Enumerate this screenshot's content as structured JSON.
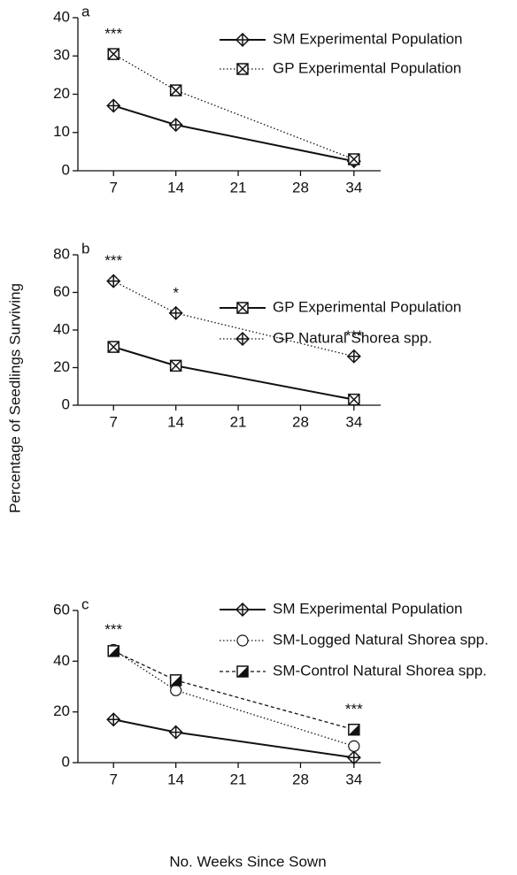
{
  "ylabel": "Percentage of Seedlings Surviving",
  "xlabel": "No. Weeks Since Sown",
  "chart_data": [
    {
      "type": "line",
      "panel": "a",
      "x": [
        7,
        14,
        34
      ],
      "xlim": [
        3,
        37
      ],
      "xticks": [
        7,
        14,
        21,
        28,
        34
      ],
      "ylim": [
        0,
        40
      ],
      "yticks": [
        0,
        10,
        20,
        30,
        40
      ],
      "series": [
        {
          "name": "SM Experimental Population",
          "color": "#111111",
          "line_style": "solid",
          "marker": "diamond",
          "values": [
            17,
            12,
            2.5
          ]
        },
        {
          "name": "GP Experimental Population",
          "color": "#111111",
          "line_style": "dotted",
          "marker": "boxx",
          "values": [
            30.5,
            21,
            3
          ]
        }
      ],
      "annotations": [
        {
          "text": "***",
          "x": 7
        }
      ]
    },
    {
      "type": "line",
      "panel": "b",
      "x": [
        7,
        14,
        34
      ],
      "xlim": [
        3,
        37
      ],
      "xticks": [
        7,
        14,
        21,
        28,
        34
      ],
      "ylim": [
        0,
        80
      ],
      "yticks": [
        0,
        20,
        40,
        60,
        80
      ],
      "series": [
        {
          "name": "GP Experimental Population",
          "color": "#111111",
          "line_style": "solid",
          "marker": "boxx",
          "values": [
            31,
            21,
            3
          ]
        },
        {
          "name": "GP Natural Shorea spp.",
          "color": "#111111",
          "line_style": "dotted",
          "marker": "diamond",
          "values": [
            66,
            49,
            26
          ]
        }
      ],
      "annotations": [
        {
          "text": "***",
          "x": 7
        },
        {
          "text": "*",
          "x": 14
        },
        {
          "text": "***",
          "x": 34
        }
      ]
    },
    {
      "type": "line",
      "panel": "c",
      "x": [
        7,
        14,
        34
      ],
      "xlim": [
        3,
        37
      ],
      "xticks": [
        7,
        14,
        21,
        28,
        34
      ],
      "ylim": [
        0,
        60
      ],
      "yticks": [
        0,
        20,
        40,
        60
      ],
      "series": [
        {
          "name": "SM Experimental Population",
          "color": "#111111",
          "line_style": "solid",
          "marker": "diamond",
          "values": [
            17,
            12,
            2
          ]
        },
        {
          "name": "SM-Logged Natural Shorea spp.",
          "color": "#111111",
          "line_style": "dotted",
          "marker": "circle",
          "values": [
            44.5,
            28.5,
            6.5
          ]
        },
        {
          "name": "SM-Control Natural Shorea spp.",
          "color": "#111111",
          "line_style": "dashed",
          "marker": "halfsquare",
          "values": [
            44,
            32.5,
            13
          ]
        }
      ],
      "annotations": [
        {
          "text": "***",
          "x": 7
        },
        {
          "text": "***",
          "x": 34
        }
      ]
    }
  ]
}
